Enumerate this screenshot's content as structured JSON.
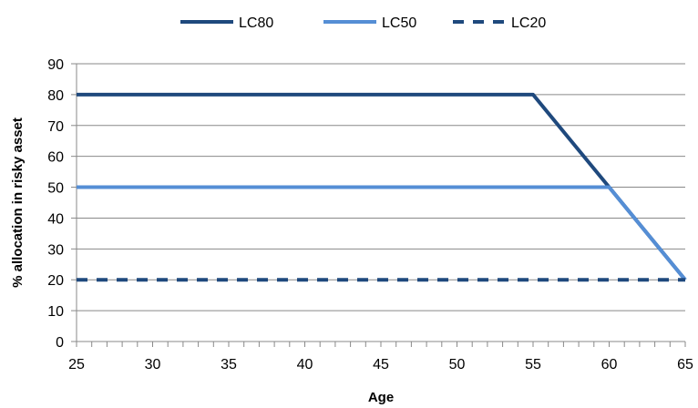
{
  "chart_data": {
    "type": "line",
    "xlabel": "Age",
    "ylabel": "% allocation  in risky asset",
    "xlim": [
      25,
      65
    ],
    "ylim": [
      0,
      90
    ],
    "x_ticks": [
      25,
      30,
      35,
      40,
      45,
      50,
      55,
      60,
      65
    ],
    "y_ticks": [
      0,
      10,
      20,
      30,
      40,
      50,
      60,
      70,
      80,
      90
    ],
    "grid": "horizontal",
    "legend_position": "top",
    "series": [
      {
        "name": "LC80",
        "color": "#1f497d",
        "style": "solid",
        "x": [
          25,
          55,
          65
        ],
        "y": [
          80,
          80,
          20
        ]
      },
      {
        "name": "LC50",
        "color": "#558ed5",
        "style": "solid",
        "x": [
          25,
          60,
          65
        ],
        "y": [
          50,
          50,
          20
        ]
      },
      {
        "name": "LC20",
        "color": "#1f497d",
        "style": "dashed",
        "x": [
          25,
          65
        ],
        "y": [
          20,
          20
        ]
      }
    ]
  }
}
